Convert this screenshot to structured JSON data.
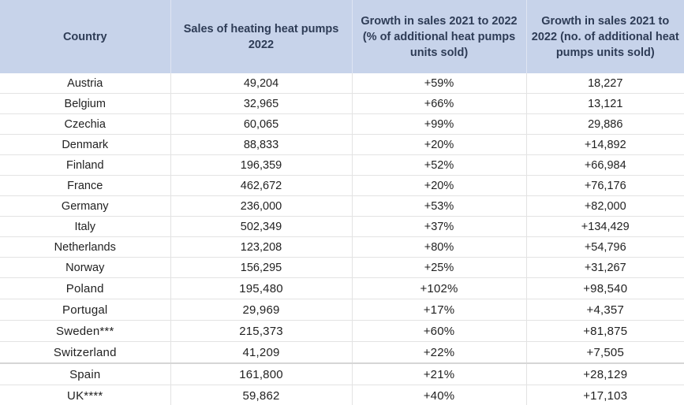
{
  "header": {
    "country": "Country",
    "sales": "Sales of heating heat pumps 2022",
    "growth_pct": "Growth in sales 2021 to 2022 (% of additional heat pumps units sold)",
    "growth_units": "Growth in sales 2021 to 2022 (no. of additional heat pumps units sold)"
  },
  "rows": [
    {
      "country": "Austria",
      "sales": "49,204",
      "growth_pct": "+59%",
      "growth_units": "18,227"
    },
    {
      "country": "Belgium",
      "sales": "32,965",
      "growth_pct": "+66%",
      "growth_units": "13,121"
    },
    {
      "country": "Czechia",
      "sales": "60,065",
      "growth_pct": "+99%",
      "growth_units": "29,886"
    },
    {
      "country": "Denmark",
      "sales": "88,833",
      "growth_pct": "+20%",
      "growth_units": "+14,892"
    },
    {
      "country": "Finland",
      "sales": "196,359",
      "growth_pct": "+52%",
      "growth_units": "+66,984"
    },
    {
      "country": "France",
      "sales": "462,672",
      "growth_pct": "+20%",
      "growth_units": "+76,176"
    },
    {
      "country": "Germany",
      "sales": "236,000",
      "growth_pct": "+53%",
      "growth_units": "+82,000"
    },
    {
      "country": "Italy",
      "sales": "502,349",
      "growth_pct": "+37%",
      "growth_units": "+134,429"
    },
    {
      "country": "Netherlands",
      "sales": "123,208",
      "growth_pct": "+80%",
      "growth_units": "+54,796"
    },
    {
      "country": "Norway",
      "sales": "156,295",
      "growth_pct": "+25%",
      "growth_units": "+31,267"
    },
    {
      "country": "Poland",
      "sales": "195,480",
      "growth_pct": "+102%",
      "growth_units": "+98,540"
    },
    {
      "country": "Portugal",
      "sales": "29,969",
      "growth_pct": "+17%",
      "growth_units": "+4,357"
    },
    {
      "country": "Sweden***",
      "sales": "215,373",
      "growth_pct": "+60%",
      "growth_units": "+81,875"
    },
    {
      "country": "Switzerland",
      "sales": "41,209",
      "growth_pct": "+22%",
      "growth_units": "+7,505"
    },
    {
      "country": "Spain",
      "sales": "161,800",
      "growth_pct": "+21%",
      "growth_units": "+28,129"
    },
    {
      "country": "UK****",
      "sales": "59,862",
      "growth_pct": "+40%",
      "growth_units": "+17,103"
    }
  ]
}
